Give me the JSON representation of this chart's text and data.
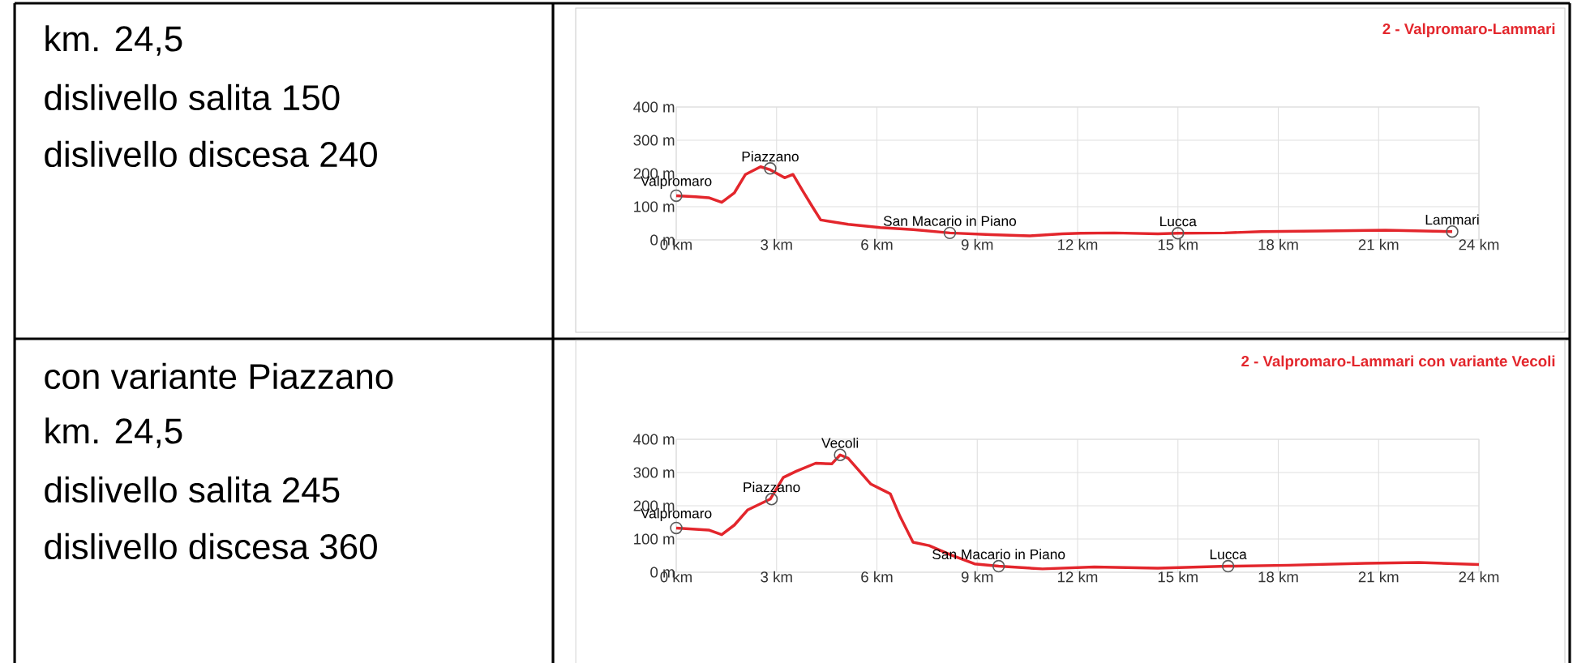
{
  "chart_data": [
    {
      "type": "other",
      "annotations": [
        "km. 24,5",
        "dislivello salita 150",
        "dislivello discesa 240"
      ]
    },
    {
      "type": "line",
      "title": "2 - Valpromaro-Lammari",
      "color": "#e3262c",
      "x": [
        0,
        0.58,
        0.97,
        1.36,
        1.74,
        2.07,
        2.52,
        2.81,
        3.24,
        3.49,
        3.78,
        4.07,
        4.32,
        5.14,
        6.1,
        7.08,
        8.18,
        9.4,
        10.57,
        11.54,
        12.1,
        13.1,
        14.4,
        15.0,
        16.4,
        17.5,
        19.3,
        21.2,
        23.2
      ],
      "values": [
        133,
        130,
        127,
        113,
        142,
        197,
        220,
        211,
        187,
        197,
        148,
        100,
        60,
        47,
        37,
        31,
        21,
        16,
        12,
        18,
        20,
        21,
        18,
        20,
        21,
        25,
        27,
        29,
        25
      ],
      "xlim": [
        0,
        24
      ],
      "ylim": [
        0,
        400
      ],
      "xticks": [
        {
          "value": 0,
          "label": "0 km"
        },
        {
          "value": 3,
          "label": "3 km"
        },
        {
          "value": 6,
          "label": "6 km"
        },
        {
          "value": 9,
          "label": "9 km"
        },
        {
          "value": 12,
          "label": "12 km"
        },
        {
          "value": 15,
          "label": "15 km"
        },
        {
          "value": 18,
          "label": "18 km"
        },
        {
          "value": 21,
          "label": "21 km"
        },
        {
          "value": 24,
          "label": "24 km"
        }
      ],
      "yticks": [
        {
          "value": 0,
          "label": "0 m"
        },
        {
          "value": 100,
          "label": "100 m"
        },
        {
          "value": 200,
          "label": "200 m"
        },
        {
          "value": 300,
          "label": "300 m"
        },
        {
          "value": 400,
          "label": "400 m"
        }
      ],
      "grid": true,
      "annotations": [
        {
          "text": "Valpromaro",
          "x": 0,
          "y": 133
        },
        {
          "text": "Piazzano",
          "x": 2.81,
          "y": 215
        },
        {
          "text": "San Macario in Piano",
          "x": 8.18,
          "y": 21
        },
        {
          "text": "Lucca",
          "x": 15.0,
          "y": 20
        },
        {
          "text": "Lammari",
          "x": 23.2,
          "y": 25
        }
      ]
    },
    {
      "type": "other",
      "annotations": [
        "con variante Piazzano",
        "km. 24,5",
        "dislivello salita 245",
        "dislivello discesa 360"
      ]
    },
    {
      "type": "line",
      "title": "2 - Valpromaro-Lammari con variante Vecoli",
      "color": "#e3262c",
      "x": [
        0,
        0.97,
        1.36,
        1.74,
        2.13,
        2.81,
        3.2,
        3.59,
        4.17,
        4.65,
        4.9,
        5.14,
        5.82,
        6.2,
        6.4,
        6.69,
        7.08,
        7.56,
        8.24,
        8.92,
        9.64,
        10.95,
        12.5,
        14.4,
        16.5,
        18.3,
        20.6,
        22.2,
        24.0
      ],
      "values": [
        133,
        127,
        113,
        142,
        187,
        220,
        285,
        304,
        328,
        326,
        353,
        343,
        265,
        246,
        236,
        168,
        90,
        80,
        51,
        25,
        18,
        10,
        16,
        12,
        18,
        21,
        27,
        29,
        23
      ],
      "xlim": [
        0,
        24
      ],
      "ylim": [
        0,
        400
      ],
      "xticks": [
        {
          "value": 0,
          "label": "0 km"
        },
        {
          "value": 3,
          "label": "3 km"
        },
        {
          "value": 6,
          "label": "6 km"
        },
        {
          "value": 9,
          "label": "9 km"
        },
        {
          "value": 12,
          "label": "12 km"
        },
        {
          "value": 15,
          "label": "15 km"
        },
        {
          "value": 18,
          "label": "18 km"
        },
        {
          "value": 21,
          "label": "21 km"
        },
        {
          "value": 24,
          "label": "24 km"
        }
      ],
      "yticks": [
        {
          "value": 0,
          "label": "0 m"
        },
        {
          "value": 100,
          "label": "100 m"
        },
        {
          "value": 200,
          "label": "200 m"
        },
        {
          "value": 300,
          "label": "300 m"
        },
        {
          "value": 400,
          "label": "400 m"
        }
      ],
      "grid": true,
      "annotations": [
        {
          "text": "Valpromaro",
          "x": 0,
          "y": 133
        },
        {
          "text": "Piazzano",
          "x": 2.85,
          "y": 220
        },
        {
          "text": "Vecoli",
          "x": 4.9,
          "y": 353
        },
        {
          "text": "San Macario in Piano",
          "x": 9.64,
          "y": 18
        },
        {
          "text": "Lucca",
          "x": 16.5,
          "y": 18
        }
      ]
    }
  ]
}
